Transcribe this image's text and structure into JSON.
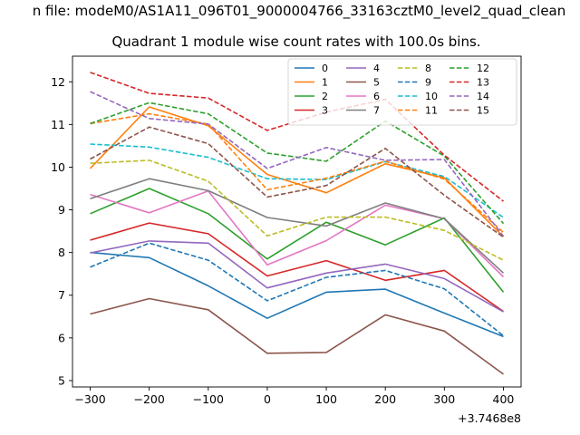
{
  "figure": {
    "suptitle": "n file: modeM0/AS1A11_096T01_9000004766_33163cztM0_level2_quad_clean"
  },
  "chart_data": {
    "type": "line",
    "title": "Quadrant 1 module wise count rates with 100.0s bins.",
    "xlabel": "",
    "ylabel": "",
    "x_offset_label": "+3.7468e8",
    "x": [
      -300,
      -200,
      -100,
      0,
      100,
      200,
      300,
      400
    ],
    "xlim": [
      -330,
      430
    ],
    "ylim": [
      4.85,
      12.6
    ],
    "xticks": [
      -300,
      -200,
      -100,
      0,
      100,
      200,
      300,
      400
    ],
    "yticks": [
      5,
      6,
      7,
      8,
      9,
      10,
      11,
      12
    ],
    "grid": false,
    "legend_position": "top-right",
    "legend_columns": 4,
    "series": [
      {
        "name": "0",
        "color": "#1f77b4",
        "dash": "solid",
        "values": [
          8.0,
          7.88,
          7.22,
          6.46,
          7.07,
          7.14,
          6.58,
          6.03
        ]
      },
      {
        "name": "1",
        "color": "#ff7f0e",
        "dash": "solid",
        "values": [
          9.97,
          11.41,
          10.97,
          9.83,
          9.4,
          10.08,
          9.75,
          8.37
        ]
      },
      {
        "name": "2",
        "color": "#2ca02c",
        "dash": "solid",
        "values": [
          8.91,
          9.5,
          8.91,
          7.85,
          8.71,
          8.18,
          8.81,
          7.07
        ]
      },
      {
        "name": "3",
        "color": "#d62728",
        "dash": "solid",
        "values": [
          8.29,
          8.69,
          8.44,
          7.45,
          7.81,
          7.35,
          7.58,
          6.62
        ]
      },
      {
        "name": "4",
        "color": "#9467bd",
        "dash": "solid",
        "values": [
          7.99,
          8.27,
          8.22,
          7.17,
          7.52,
          7.73,
          7.39,
          6.61
        ]
      },
      {
        "name": "5",
        "color": "#8c564b",
        "dash": "solid",
        "values": [
          6.56,
          6.92,
          6.66,
          5.64,
          5.66,
          6.54,
          6.16,
          5.15
        ]
      },
      {
        "name": "6",
        "color": "#e377c2",
        "dash": "solid",
        "values": [
          9.36,
          8.93,
          9.44,
          7.71,
          8.28,
          9.11,
          8.79,
          7.43
        ]
      },
      {
        "name": "7",
        "color": "#7f7f7f",
        "dash": "solid",
        "values": [
          9.26,
          9.73,
          9.45,
          8.82,
          8.62,
          9.16,
          8.79,
          7.52
        ]
      },
      {
        "name": "8",
        "color": "#bcbd22",
        "dash": "dashed",
        "values": [
          10.09,
          10.16,
          9.67,
          8.39,
          8.83,
          8.83,
          8.52,
          7.82
        ]
      },
      {
        "name": "9",
        "color": "#1f77b4",
        "dash": "dashed",
        "values": [
          7.66,
          8.22,
          7.82,
          6.87,
          7.42,
          7.58,
          7.15,
          6.05
        ]
      },
      {
        "name": "10",
        "color": "#17becf",
        "dash": "dashed",
        "values": [
          10.54,
          10.47,
          10.23,
          9.73,
          9.71,
          10.13,
          9.78,
          8.82
        ]
      },
      {
        "name": "11",
        "color": "#ff7f0e",
        "dash": "dashed",
        "values": [
          11.02,
          11.25,
          11.01,
          9.47,
          9.74,
          10.14,
          9.72,
          8.47
        ]
      },
      {
        "name": "12",
        "color": "#2ca02c",
        "dash": "dashed",
        "values": [
          11.02,
          11.51,
          11.25,
          10.33,
          10.14,
          11.08,
          10.26,
          8.68
        ]
      },
      {
        "name": "13",
        "color": "#d62728",
        "dash": "dashed",
        "values": [
          12.22,
          11.73,
          11.62,
          10.86,
          11.29,
          11.59,
          10.28,
          9.2
        ]
      },
      {
        "name": "14",
        "color": "#9467bd",
        "dash": "dashed",
        "values": [
          11.77,
          11.14,
          11.01,
          9.97,
          10.46,
          10.16,
          10.18,
          8.38
        ]
      },
      {
        "name": "15",
        "color": "#8c564b",
        "dash": "dashed",
        "values": [
          10.19,
          10.94,
          10.55,
          9.3,
          9.57,
          10.44,
          9.34,
          8.36
        ]
      }
    ]
  }
}
